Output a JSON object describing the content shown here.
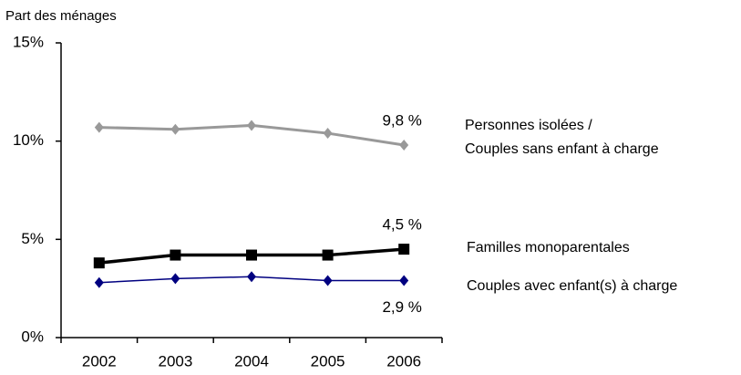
{
  "chart_data": {
    "type": "line",
    "y_label": "Part des ménages",
    "categories": [
      "2002",
      "2003",
      "2004",
      "2005",
      "2006"
    ],
    "series": [
      {
        "name": "Personnes isolées /\nCouples sans enfant à charge",
        "color": "#999999",
        "marker": "diamond",
        "values": [
          10.7,
          10.6,
          10.8,
          10.4,
          9.8
        ],
        "value_labels": [
          null,
          null,
          null,
          null,
          "9,8 %"
        ]
      },
      {
        "name": "Familles  monoparentales",
        "color": "#000000",
        "marker": "square",
        "values": [
          3.8,
          4.2,
          4.2,
          4.2,
          4.5
        ],
        "value_labels": [
          null,
          null,
          null,
          null,
          "4,5 %"
        ]
      },
      {
        "name": "Couples avec enfant(s) à charge",
        "color": "#000080",
        "marker": "diamond",
        "values": [
          2.8,
          3.0,
          3.1,
          2.9,
          2.9
        ],
        "value_labels": [
          null,
          null,
          null,
          null,
          "2,9 %"
        ]
      }
    ],
    "ylim": [
      0,
      15
    ],
    "yticks": [
      {
        "value": 0,
        "label": "0%"
      },
      {
        "value": 5,
        "label": "5%"
      },
      {
        "value": 10,
        "label": "10%"
      },
      {
        "value": 15,
        "label": "15%"
      }
    ],
    "grid": false
  }
}
